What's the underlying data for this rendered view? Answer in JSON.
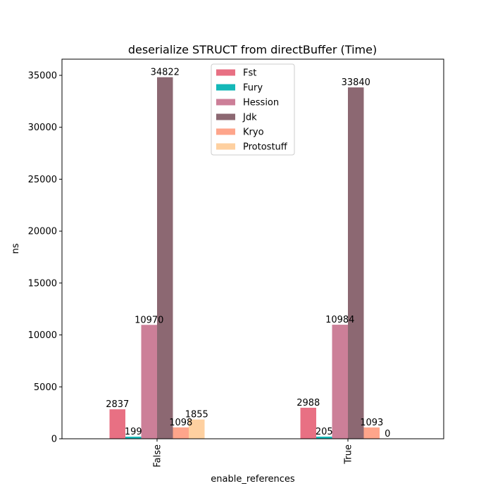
{
  "chart_data": {
    "type": "bar",
    "title": "deserialize STRUCT from directBuffer (Time)",
    "xlabel": "enable_references",
    "ylabel": "ns",
    "categories": [
      "False",
      "True"
    ],
    "ylim": [
      0,
      36561
    ],
    "yticks": [
      0,
      5000,
      10000,
      15000,
      20000,
      25000,
      30000,
      35000
    ],
    "legend_position": "upper-center",
    "grid": false,
    "series": [
      {
        "name": "Fst",
        "color": "#e87083",
        "values": [
          2837,
          2988
        ]
      },
      {
        "name": "Fury",
        "color": "#14b8b8",
        "values": [
          199,
          205
        ]
      },
      {
        "name": "Hession",
        "color": "#cc7f98",
        "values": [
          10970,
          10984
        ]
      },
      {
        "name": "Jdk",
        "color": "#8c6872",
        "values": [
          34822,
          33840
        ]
      },
      {
        "name": "Kryo",
        "color": "#fea58b",
        "values": [
          1098,
          1093
        ]
      },
      {
        "name": "Protostuff",
        "color": "#fed0a0",
        "values": [
          1855,
          0
        ]
      }
    ]
  }
}
